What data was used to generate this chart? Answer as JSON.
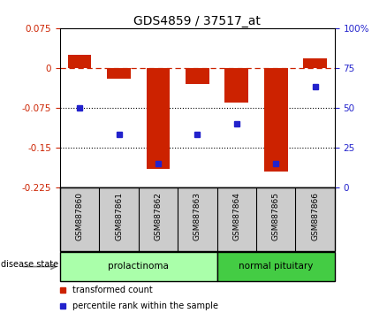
{
  "title": "GDS4859 / 37517_at",
  "samples": [
    "GSM887860",
    "GSM887861",
    "GSM887862",
    "GSM887863",
    "GSM887864",
    "GSM887865",
    "GSM887866"
  ],
  "transformed_count": [
    0.025,
    -0.02,
    -0.19,
    -0.03,
    -0.065,
    -0.195,
    0.018
  ],
  "percentile_rank": [
    50,
    33,
    15,
    33,
    40,
    15,
    63
  ],
  "ylim_left": [
    -0.225,
    0.075
  ],
  "ylim_right": [
    0,
    100
  ],
  "yticks_left": [
    0.075,
    0,
    -0.075,
    -0.15,
    -0.225
  ],
  "yticks_right": [
    100,
    75,
    50,
    25,
    0
  ],
  "hlines": [
    -0.075,
    -0.15
  ],
  "zero_line": 0,
  "bar_color": "#cc2200",
  "dot_color": "#2222cc",
  "disease_groups": [
    {
      "label": "prolactinoma",
      "samples": [
        0,
        1,
        2,
        3
      ],
      "color": "#aaffaa"
    },
    {
      "label": "normal pituitary",
      "samples": [
        4,
        5,
        6
      ],
      "color": "#44cc44"
    }
  ],
  "legend_items": [
    {
      "label": "transformed count",
      "color": "#cc2200"
    },
    {
      "label": "percentile rank within the sample",
      "color": "#2222cc"
    }
  ],
  "disease_state_label": "disease state",
  "background_color": "#ffffff",
  "plot_bg_color": "#ffffff",
  "tick_label_color_left": "#cc2200",
  "tick_label_color_right": "#2222cc",
  "title_fontsize": 10,
  "tick_fontsize": 7.5,
  "bar_width": 0.6,
  "sample_box_color": "#cccccc",
  "arrow_color": "#888888"
}
